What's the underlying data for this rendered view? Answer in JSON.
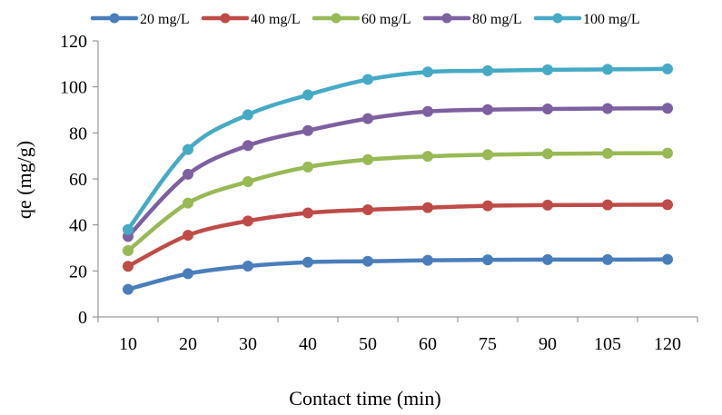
{
  "chart_data": {
    "type": "line",
    "title": "",
    "xlabel": "Contact time (min)",
    "ylabel": "qe (mg/g)",
    "categories": [
      "10",
      "20",
      "30",
      "40",
      "50",
      "60",
      "75",
      "90",
      "105",
      "120"
    ],
    "ylim": [
      0,
      120
    ],
    "yticks": [
      0,
      20,
      40,
      60,
      80,
      100,
      120
    ],
    "grid": false,
    "legend_position": "top",
    "series": [
      {
        "name": "20 mg/L",
        "color": "#4a7ebb",
        "values": [
          12.0,
          18.8,
          22.1,
          23.8,
          24.2,
          24.6,
          24.8,
          24.9,
          24.9,
          25.0
        ]
      },
      {
        "name": "40 mg/L",
        "color": "#be4b48",
        "values": [
          22.0,
          35.5,
          41.7,
          45.2,
          46.6,
          47.5,
          48.3,
          48.6,
          48.7,
          48.8
        ]
      },
      {
        "name": "60 mg/L",
        "color": "#98b954",
        "values": [
          28.8,
          49.5,
          58.8,
          65.2,
          68.4,
          69.8,
          70.5,
          70.9,
          71.1,
          71.2
        ]
      },
      {
        "name": "80 mg/L",
        "color": "#7d60a0",
        "values": [
          35.0,
          62.0,
          74.5,
          81.0,
          86.2,
          89.3,
          90.1,
          90.4,
          90.6,
          90.7
        ]
      },
      {
        "name": "100 mg/L",
        "color": "#46aac5",
        "values": [
          38.0,
          72.8,
          87.9,
          96.5,
          103.2,
          106.5,
          107.0,
          107.4,
          107.6,
          107.8
        ]
      }
    ]
  }
}
